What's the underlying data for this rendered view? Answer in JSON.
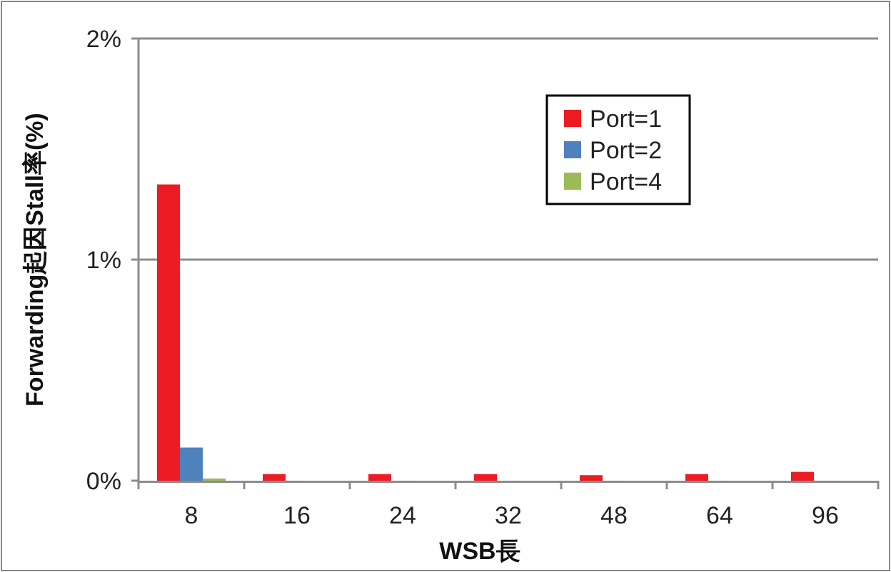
{
  "chart_data": {
    "type": "bar",
    "xlabel": "WSB長",
    "ylabel": "Forwarding起因Stall率(%)",
    "categories": [
      "8",
      "16",
      "24",
      "32",
      "48",
      "64",
      "96"
    ],
    "series": [
      {
        "name": "Port=1",
        "color": "#ed1c24",
        "values": [
          1.34,
          0.03,
          0.03,
          0.03,
          0.025,
          0.03,
          0.04
        ]
      },
      {
        "name": "Port=2",
        "color": "#4f81bd",
        "values": [
          0.15,
          0,
          0,
          0,
          0,
          0,
          0
        ]
      },
      {
        "name": "Port=4",
        "color": "#9bbb59",
        "values": [
          0.01,
          0,
          0,
          0,
          0,
          0,
          0
        ]
      }
    ],
    "ylim": [
      0,
      2
    ],
    "yticks": [
      {
        "value": 0,
        "label": "0%"
      },
      {
        "value": 1,
        "label": "1%"
      },
      {
        "value": 2,
        "label": "2%"
      }
    ],
    "grid": "y",
    "legend": "top right"
  }
}
